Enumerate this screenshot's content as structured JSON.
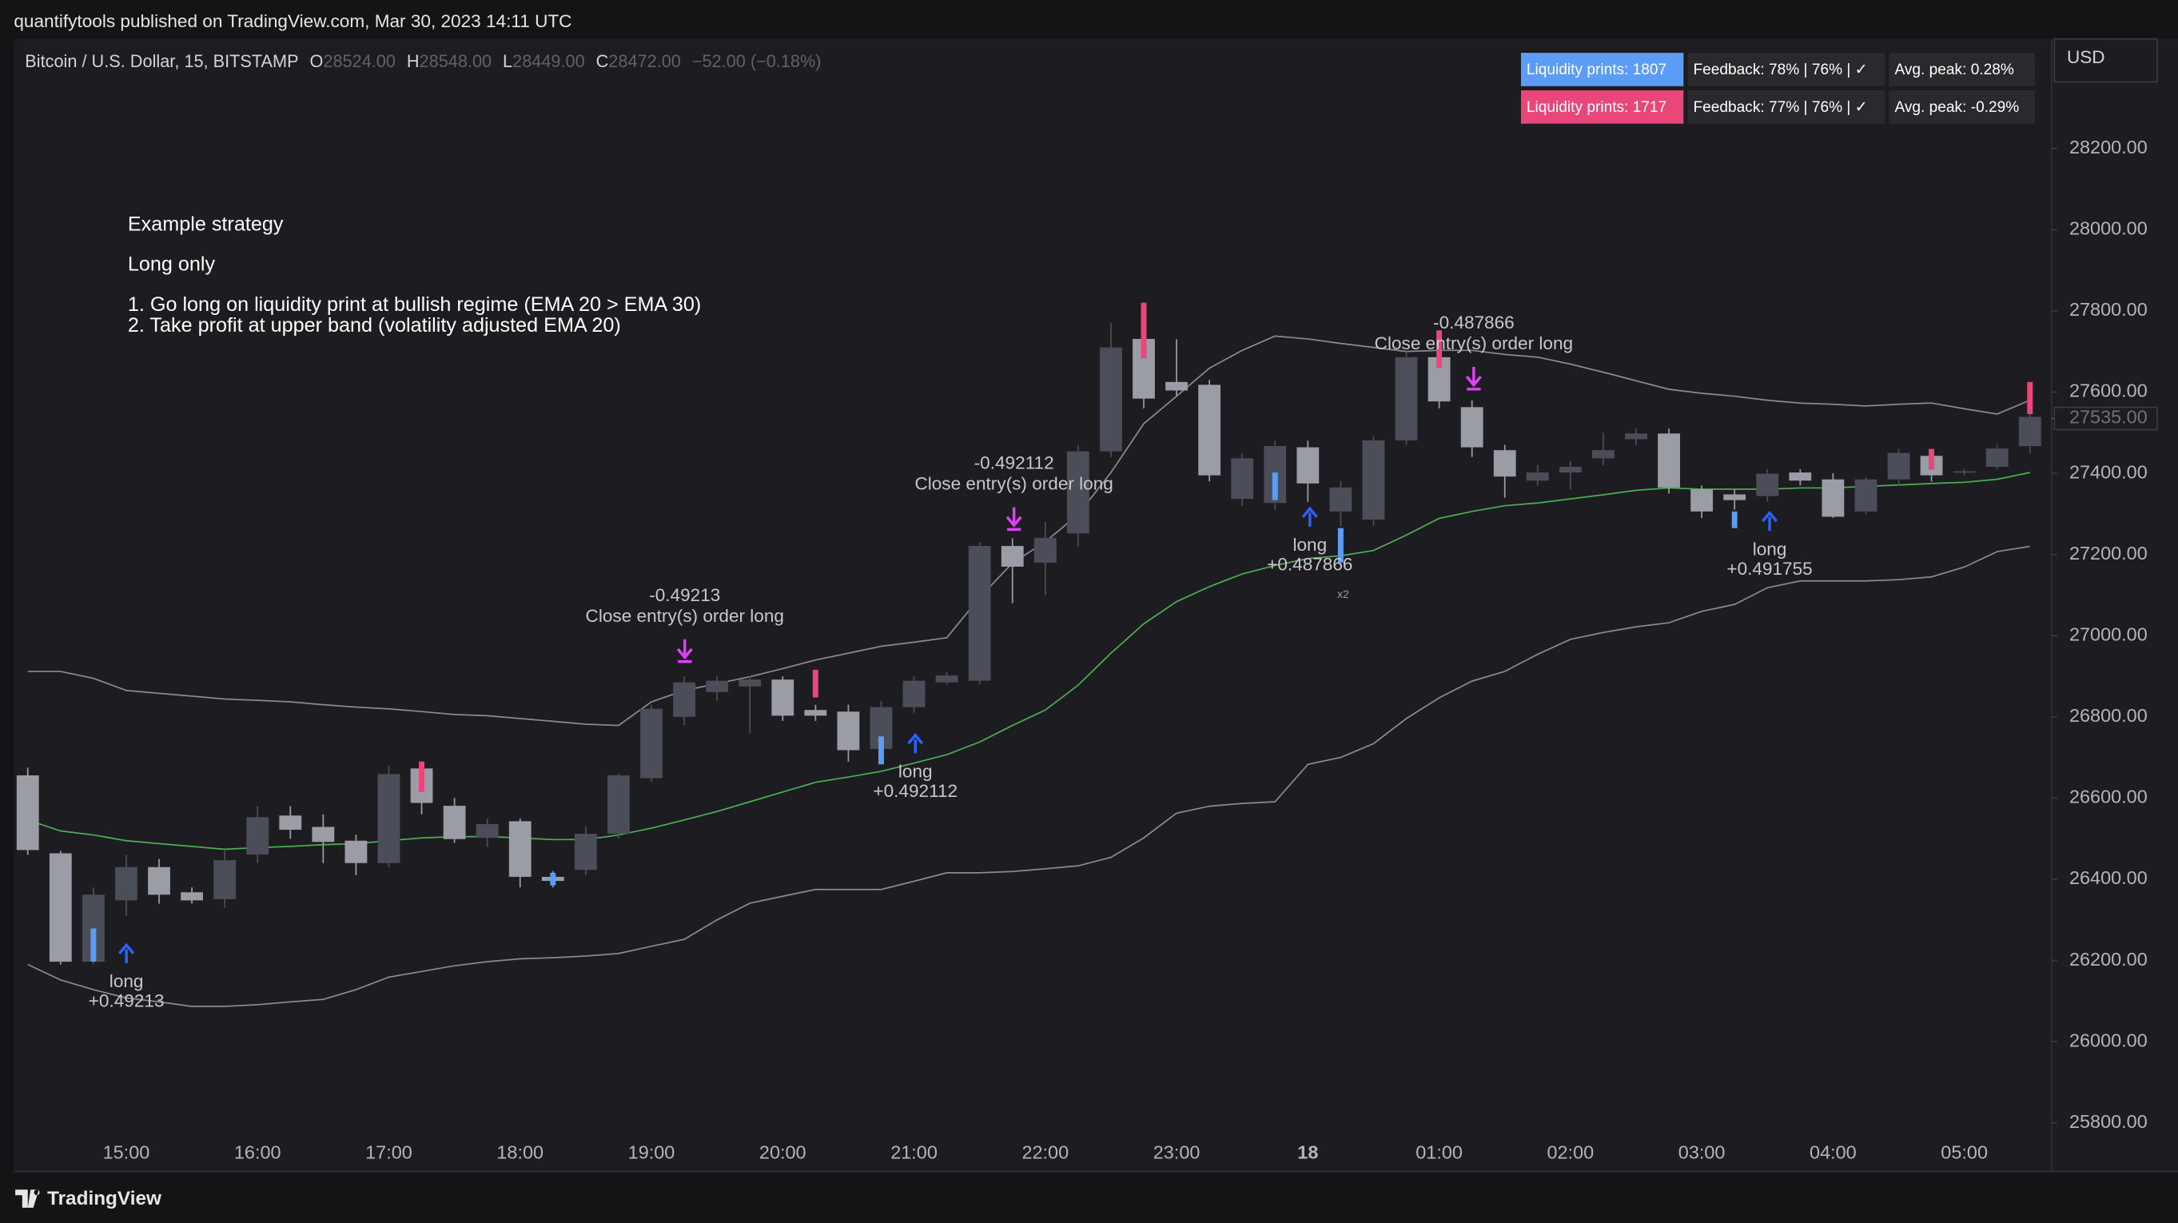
{
  "header": {
    "published": "quantifytools published on TradingView.com, Mar 30, 2023 14:11 UTC"
  },
  "chart_data": {
    "type": "candlestick",
    "symbol": "Bitcoin / U.S. Dollar, 15, BITSTAMP",
    "ohlc_labels": [
      "O",
      "H",
      "L",
      "C"
    ],
    "ohlc_values": [
      "28524.00",
      "28548.00",
      "28449.00",
      "28472.00"
    ],
    "change": "−52.00 (−0.18%)",
    "notes": [
      "Example strategy",
      "Long only",
      "1. Go long on liquidity print at bullish regime (EMA 20 > EMA 30)",
      "2. Take profit at upper band (volatility adjusted EMA 20)"
    ],
    "currency": "USD",
    "legend": [
      [
        "Liquidity prints: 1807",
        "Feedback: 78% | 76% | ✓",
        "Avg. peak: 0.28%"
      ],
      [
        "Liquidity prints: 1717",
        "Feedback: 77% | 76% | ✓",
        "Avg. peak: -0.29%"
      ]
    ],
    "categories": [
      null,
      null,
      null,
      "15:00",
      null,
      null,
      null,
      "16:00",
      null,
      null,
      null,
      "17:00",
      null,
      null,
      null,
      "18:00",
      null,
      null,
      null,
      "19:00",
      null,
      null,
      null,
      "20:00",
      null,
      null,
      null,
      "21:00",
      null,
      null,
      null,
      "22:00",
      null,
      null,
      null,
      "23:00",
      null,
      null,
      null,
      "18",
      null,
      null,
      null,
      "01:00",
      null,
      null,
      null,
      "02:00",
      null,
      null,
      null,
      "03:00",
      null,
      null,
      null,
      "04:00",
      null,
      null,
      null,
      "05:00",
      null,
      null
    ],
    "open": [
      26656,
      26464,
      26197,
      26348,
      26430,
      26368,
      26351,
      26461,
      26557,
      26529,
      26495,
      26440,
      26673,
      26581,
      26502,
      26543,
      26406,
      26423,
      26512,
      26649,
      26800,
      26861,
      26875,
      26892,
      26817,
      26813,
      26721,
      26824,
      26885,
      26889,
      27221,
      27180,
      27252,
      27454,
      27731,
      27625,
      27618,
      27337,
      27327,
      27464,
      27306,
      27286,
      27481,
      27686,
      27563,
      27457,
      27382,
      27402,
      27437,
      27484,
      27498,
      27361,
      27348,
      27344,
      27402,
      27385,
      27306,
      27385,
      27443,
      27402,
      27416,
      27467
    ],
    "high": [
      26675,
      26470,
      26380,
      26460,
      26450,
      26380,
      26470,
      26580,
      26580,
      26560,
      26510,
      26680,
      26690,
      26600,
      26550,
      26550,
      26420,
      26530,
      26660,
      26830,
      26900,
      26900,
      26900,
      26900,
      26830,
      26830,
      26840,
      26900,
      26910,
      27230,
      27240,
      27280,
      27470,
      27770,
      27820,
      27730,
      27630,
      27450,
      27480,
      27480,
      27380,
      27490,
      27700,
      27700,
      27580,
      27470,
      27420,
      27430,
      27500,
      27510,
      27510,
      27370,
      27360,
      27410,
      27410,
      27400,
      27390,
      27460,
      27460,
      27410,
      27470,
      27560
    ],
    "low": [
      26460,
      26190,
      26190,
      26310,
      26340,
      26340,
      26330,
      26440,
      26500,
      26440,
      26410,
      26430,
      26560,
      26490,
      26480,
      26380,
      26380,
      26410,
      26500,
      26640,
      26780,
      26840,
      26760,
      26790,
      26790,
      26690,
      26690,
      26810,
      26880,
      26880,
      27080,
      27100,
      27220,
      27440,
      27560,
      27590,
      27380,
      27320,
      27310,
      27330,
      27270,
      27270,
      27470,
      27560,
      27440,
      27340,
      27370,
      27360,
      27420,
      27470,
      27350,
      27290,
      27310,
      27330,
      27370,
      27290,
      27300,
      27370,
      27380,
      27395,
      27410,
      27450
    ],
    "close": [
      26472,
      26197,
      26362,
      26430,
      26362,
      26348,
      26447,
      26553,
      26522,
      26492,
      26440,
      26659,
      26588,
      26499,
      26536,
      26406,
      26396,
      26512,
      26656,
      26820,
      26885,
      26889,
      26892,
      26803,
      26803,
      26718,
      26824,
      26889,
      26902,
      27221,
      27170,
      27241,
      27454,
      27710,
      27584,
      27604,
      27395,
      27437,
      27467,
      27375,
      27365,
      27481,
      27686,
      27577,
      27464,
      27392,
      27402,
      27416,
      27457,
      27498,
      27365,
      27306,
      27334,
      27399,
      27382,
      27293,
      27385,
      27450,
      27395,
      27405,
      27461,
      27539
    ],
    "up_color": "#4b4e58",
    "down_color": "#9a9da6",
    "lines": [
      {
        "color": "#8a8a8f",
        "values": [
          26912,
          26912,
          26895,
          26865,
          26858,
          26851,
          26844,
          26841,
          26837,
          26830,
          26824,
          26820,
          26813,
          26806,
          26803,
          26796,
          26789,
          26782,
          26779,
          26837,
          26865,
          26882,
          26899,
          26919,
          26940,
          26957,
          26974,
          26984,
          26995,
          27094,
          27179,
          27231,
          27299,
          27402,
          27522,
          27590,
          27659,
          27703,
          27738,
          27731,
          27720,
          27710,
          27700,
          27703,
          27703,
          27693,
          27686,
          27669,
          27649,
          27628,
          27607,
          27597,
          27590,
          27580,
          27573,
          27570,
          27566,
          27570,
          27573,
          27559,
          27546,
          27580
        ]
      },
      {
        "color": "#8a8a8f",
        "values": [
          26190,
          26152,
          26128,
          26108,
          26098,
          26087,
          26087,
          26091,
          26098,
          26104,
          26128,
          26159,
          26173,
          26187,
          26197,
          26204,
          26207,
          26211,
          26217,
          26235,
          26252,
          26300,
          26341,
          26358,
          26375,
          26375,
          26375,
          26395,
          26416,
          26416,
          26419,
          26426,
          26433,
          26454,
          26502,
          26563,
          26580,
          26587,
          26591,
          26683,
          26700,
          26734,
          26796,
          26847,
          26888,
          26912,
          26954,
          26991,
          27008,
          27022,
          27032,
          27060,
          27077,
          27118,
          27135,
          27135,
          27135,
          27138,
          27145,
          27169,
          27207,
          27220
        ]
      },
      {
        "color": "#4caf50",
        "values": [
          26546,
          26519,
          26509,
          26495,
          26488,
          26481,
          26474,
          26478,
          26481,
          26485,
          26488,
          26495,
          26502,
          26505,
          26505,
          26502,
          26498,
          26498,
          26509,
          26526,
          26546,
          26567,
          26591,
          26615,
          26639,
          26652,
          26666,
          26686,
          26707,
          26738,
          26779,
          26817,
          26878,
          26957,
          27029,
          27084,
          27121,
          27152,
          27173,
          27190,
          27197,
          27210,
          27248,
          27289,
          27306,
          27320,
          27327,
          27337,
          27347,
          27358,
          27364,
          27361,
          27361,
          27361,
          27364,
          27364,
          27368,
          27371,
          27375,
          27378,
          27385,
          27402
        ]
      }
    ],
    "buy_color": "#5b9cf6",
    "sell_color": "#e9467a",
    "buy_prints": [
      null,
      null,
      [
        26197,
        26279
      ],
      null,
      null,
      null,
      null,
      null,
      null,
      null,
      null,
      null,
      null,
      null,
      null,
      null,
      [
        26385,
        26416
      ],
      null,
      null,
      null,
      null,
      null,
      null,
      null,
      null,
      null,
      [
        26683,
        26752
      ],
      null,
      null,
      null,
      null,
      null,
      null,
      null,
      null,
      null,
      null,
      null,
      [
        27334,
        27402
      ],
      null,
      [
        27180,
        27265
      ],
      null,
      null,
      null,
      null,
      null,
      null,
      null,
      null,
      null,
      null,
      null,
      [
        27265,
        27306
      ],
      null,
      null,
      null,
      null,
      null,
      null,
      null,
      null,
      null
    ],
    "sell_prints": [
      null,
      null,
      null,
      null,
      null,
      null,
      null,
      null,
      null,
      null,
      null,
      null,
      [
        26615,
        26690
      ],
      null,
      null,
      null,
      null,
      null,
      null,
      null,
      null,
      null,
      null,
      null,
      [
        26848,
        26916
      ],
      null,
      null,
      null,
      null,
      null,
      null,
      null,
      null,
      null,
      [
        27683,
        27820
      ],
      null,
      null,
      null,
      null,
      null,
      null,
      null,
      null,
      [
        27659,
        27752
      ],
      null,
      null,
      null,
      null,
      null,
      null,
      null,
      null,
      null,
      null,
      null,
      null,
      null,
      null,
      [
        27409,
        27460
      ],
      null,
      null,
      [
        27546,
        27625
      ]
    ],
    "entries": [
      {
        "label": "long",
        "pnl": "+0.49213"
      },
      {
        "label": "long",
        "pnl": "+0.492112"
      },
      {
        "label": "long",
        "pnl": "+0.487866"
      },
      {
        "label": "long",
        "pnl": "+0.491755"
      }
    ],
    "exits": [
      {
        "pnl": "-0.49213",
        "label": "Close entry(s) order long"
      },
      {
        "pnl": "-0.492112",
        "label": "Close entry(s) order long"
      },
      {
        "pnl": "-0.487866",
        "label": "Close entry(s) order long"
      }
    ],
    "marker_note": "x2",
    "ylim": [
      25680,
      28470
    ],
    "yticks": [
      {
        "value": 25800,
        "label": "25800.00"
      },
      {
        "value": 26000,
        "label": "26000.00"
      },
      {
        "value": 26200,
        "label": "26200.00"
      },
      {
        "value": 26400,
        "label": "26400.00"
      },
      {
        "value": 26600,
        "label": "26600.00"
      },
      {
        "value": 26800,
        "label": "26800.00"
      },
      {
        "value": 27000,
        "label": "27000.00"
      },
      {
        "value": 27200,
        "label": "27200.00"
      },
      {
        "value": 27400,
        "label": "27400.00"
      },
      {
        "value": 27600,
        "label": "27600.00"
      },
      {
        "value": 27800,
        "label": "27800.00"
      },
      {
        "value": 28000,
        "label": "28000.00"
      },
      {
        "value": 28200,
        "label": "28200.00"
      }
    ],
    "last_price": {
      "value": 27535,
      "label": "27535.00"
    },
    "grid": false
  },
  "footer": {
    "brand": "TradingView"
  }
}
